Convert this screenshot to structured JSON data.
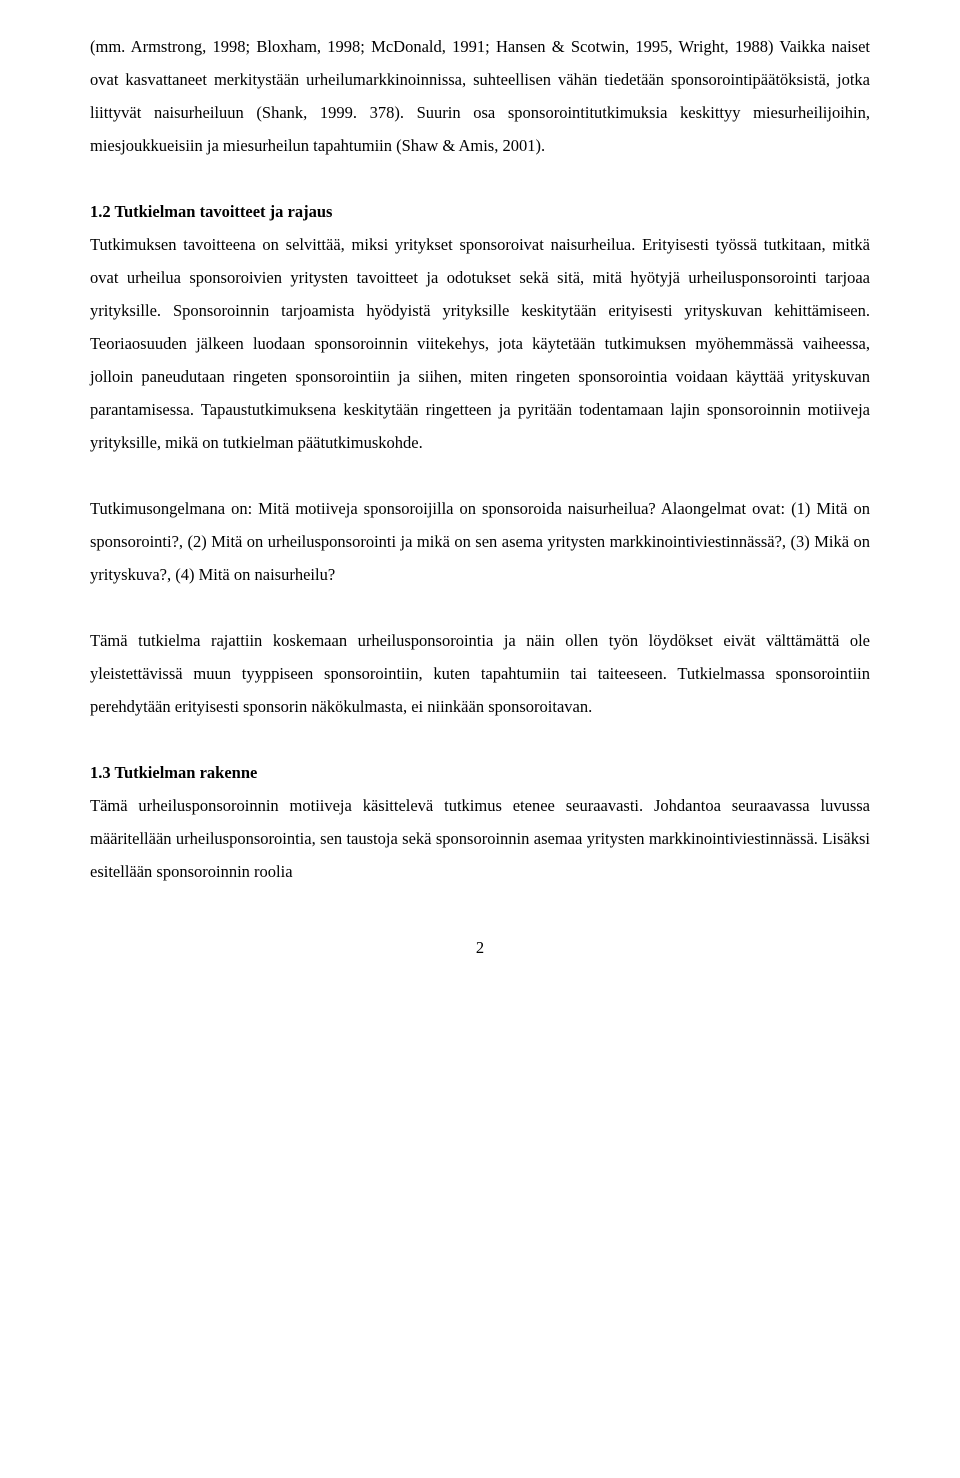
{
  "page_number": "2",
  "font_family": "Times New Roman",
  "font_size_pt": 12,
  "line_height": 2.0,
  "text_color": "#000000",
  "background_color": "#ffffff",
  "para1": "(mm. Armstrong, 1998; Bloxham, 1998; McDonald, 1991; Hansen & Scotwin, 1995, Wright, 1988) Vaikka naiset ovat kasvattaneet merkitystään urheilumarkkinoinnissa, suhteellisen vähän tiedetään sponsorointipäätöksistä, jotka liittyvät naisurheiluun (Shank, 1999. 378). Suurin osa sponsorointitutkimuksia keskittyy miesurheilijoihin, miesjoukkueisiin ja miesurheilun tapahtumiin (Shaw & Amis, 2001).",
  "section_1_2_title": "1.2 Tutkielman tavoitteet ja rajaus",
  "para2": "Tutkimuksen tavoitteena on selvittää, miksi yritykset sponsoroivat naisurheilua. Erityisesti työssä tutkitaan, mitkä ovat urheilua sponsoroivien yritysten tavoitteet ja odotukset sekä sitä, mitä hyötyjä urheilusponsorointi tarjoaa yrityksille. Sponsoroinnin tarjoamista hyödyistä yrityksille keskitytään erityisesti yrityskuvan kehittämiseen. Teoriaosuuden jälkeen luodaan sponsoroinnin viitekehys, jota käytetään tutkimuksen myöhemmässä vaiheessa, jolloin paneudutaan ringeten sponsorointiin ja siihen, miten ringeten sponsorointia voidaan käyttää yrityskuvan parantamisessa. Tapaustutkimuksena keskitytään ringetteen ja pyritään todentamaan lajin sponsoroinnin motiiveja yrityksille, mikä on tutkielman päätutkimuskohde.",
  "para3": "Tutkimusongelmana on: Mitä motiiveja sponsoroijilla on sponsoroida naisurheilua? Alaongelmat ovat: (1) Mitä on sponsorointi?, (2) Mitä on urheilusponsorointi ja mikä on sen asema yritysten markkinointiviestinnässä?, (3) Mikä on yrityskuva?, (4) Mitä on naisurheilu?",
  "para4": "Tämä tutkielma rajattiin koskemaan urheilusponsorointia ja näin ollen työn löydökset eivät välttämättä ole yleistettävissä muun tyyppiseen sponsorointiin, kuten tapahtumiin tai taiteeseen. Tutkielmassa sponsorointiin perehdytään erityisesti sponsorin näkökulmasta, ei niinkään sponsoroitavan.",
  "section_1_3_title": "1.3 Tutkielman rakenne",
  "para5": "Tämä urheilusponsoroinnin motiiveja käsittelevä tutkimus etenee seuraavasti. Johdantoa seuraavassa luvussa määritellään urheilusponsorointia, sen taustoja sekä sponsoroinnin asemaa yritysten markkinointiviestinnässä. Lisäksi esitellään sponsoroinnin roolia"
}
